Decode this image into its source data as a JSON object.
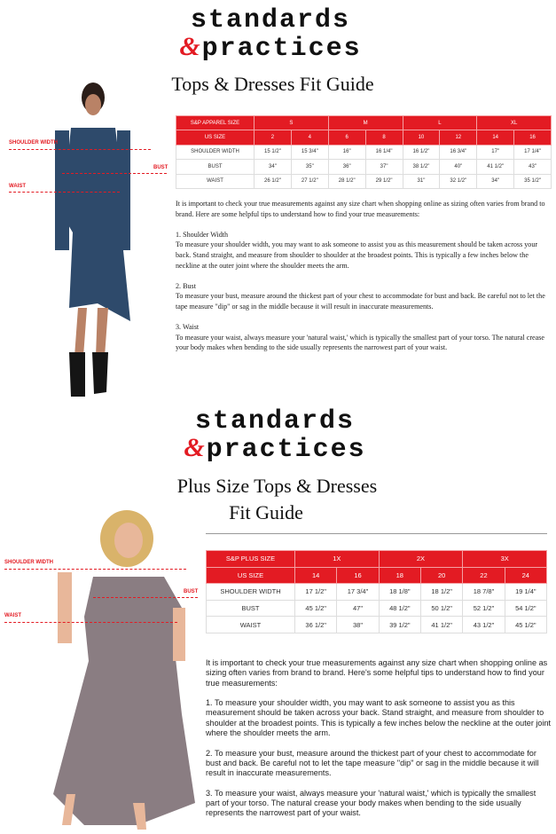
{
  "section1": {
    "logo_line1": "standards",
    "logo_amp": "&",
    "logo_line2": "practices",
    "title": "Tops & Dresses Fit Guide",
    "labels": {
      "shoulder": "SHOULDER WIDTH",
      "bust": "BUST",
      "waist": "WAIST"
    },
    "table": {
      "header": [
        "S&P APPAREL SIZE",
        "S",
        "M",
        "L",
        "XL"
      ],
      "us_size": [
        "US SIZE",
        "2",
        "4",
        "6",
        "8",
        "10",
        "12",
        "14",
        "16"
      ],
      "rows": [
        [
          "SHOULDER WIDTH",
          "15 1/2\"",
          "15 3/4\"",
          "16\"",
          "16 1/4\"",
          "16 1/2\"",
          "16 3/4\"",
          "17\"",
          "17 1/4\""
        ],
        [
          "BUST",
          "34\"",
          "35\"",
          "36\"",
          "37\"",
          "38 1/2\"",
          "40\"",
          "41 1/2\"",
          "43\""
        ],
        [
          "WAIST",
          "26 1/2\"",
          "27 1/2\"",
          "28 1/2\"",
          "29 1/2\"",
          "31\"",
          "32 1/2\"",
          "34\"",
          "35 1/2\""
        ]
      ]
    },
    "text": "It is important to check your true measurements against any size chart when shopping online as sizing often varies from brand to brand. Here are some helpful tips to understand how to find your true measurements:\n\n1. Shoulder Width\nTo measure your shoulder width, you may want to ask someone to assist you as this measurement should be taken across your back. Stand straight, and measure from shoulder to shoulder at the broadest points. This is typically a few inches below the neckline at the outer joint where the shoulder meets the arm.\n\n2. Bust\nTo measure your bust, measure around the thickest part of your chest to accommodate for bust and back. Be careful not to let the tape measure \"dip\" or sag in the middle because it will result in inaccurate measurements.\n\n3. Waist\nTo measure your waist, always measure your 'natural waist,' which is typically the smallest part of your torso.  The natural crease your body makes when bending to the side usually represents the narrowest part of your waist."
  },
  "section2": {
    "logo_line1": "standards",
    "logo_amp": "&",
    "logo_line2": "practices",
    "title_line1": "Plus Size Tops & Dresses",
    "title_line2": "Fit Guide",
    "labels": {
      "shoulder": "SHOULDER WIDTH",
      "bust": "BUST",
      "waist": "WAIST"
    },
    "table": {
      "header": [
        "S&P PLUS SIZE",
        "1X",
        "2X",
        "3X"
      ],
      "us_size": [
        "US SIZE",
        "14",
        "16",
        "18",
        "20",
        "22",
        "24"
      ],
      "rows": [
        [
          "SHOULDER WIDTH",
          "17 1/2\"",
          "17 3/4\"",
          "18 1/8\"",
          "18 1/2\"",
          "18 7/8\"",
          "19 1/4\""
        ],
        [
          "BUST",
          "45 1/2\"",
          "47\"",
          "48 1/2\"",
          "50 1/2\"",
          "52 1/2\"",
          "54 1/2\""
        ],
        [
          "WAIST",
          "36 1/2\"",
          "38\"",
          "39 1/2\"",
          "41 1/2\"",
          "43 1/2\"",
          "45 1/2\""
        ]
      ]
    },
    "text": "It is important to check your true measurements against any size chart when shopping online as sizing often varies from brand to brand. Here's some helpful tips to understand how to find your true measurements:\n\n1. To measure your shoulder width, you may want to ask someone to assist you as this measurement should be taken across your back. Stand straight, and measure from shoulder to shoulder at the broadest points. This is typically a few inches below the neckline at the outer joint where the shoulder meets the arm.\n\n2. To measure your bust, measure around the thickest part of your chest to accommodate for bust and back. Be careful not to let the tape measure \"dip\" or sag in the middle because it will result in inaccurate measurements.\n\n3. To measure your waist, always measure your 'natural waist,' which is typically the smallest part of your torso.  The natural crease your body makes when bending to the side usually represents the narrowest part of your waist."
  },
  "colors": {
    "accent": "#e31b23",
    "dress1": "#2e4a6b",
    "dress2": "#8a7d82"
  }
}
